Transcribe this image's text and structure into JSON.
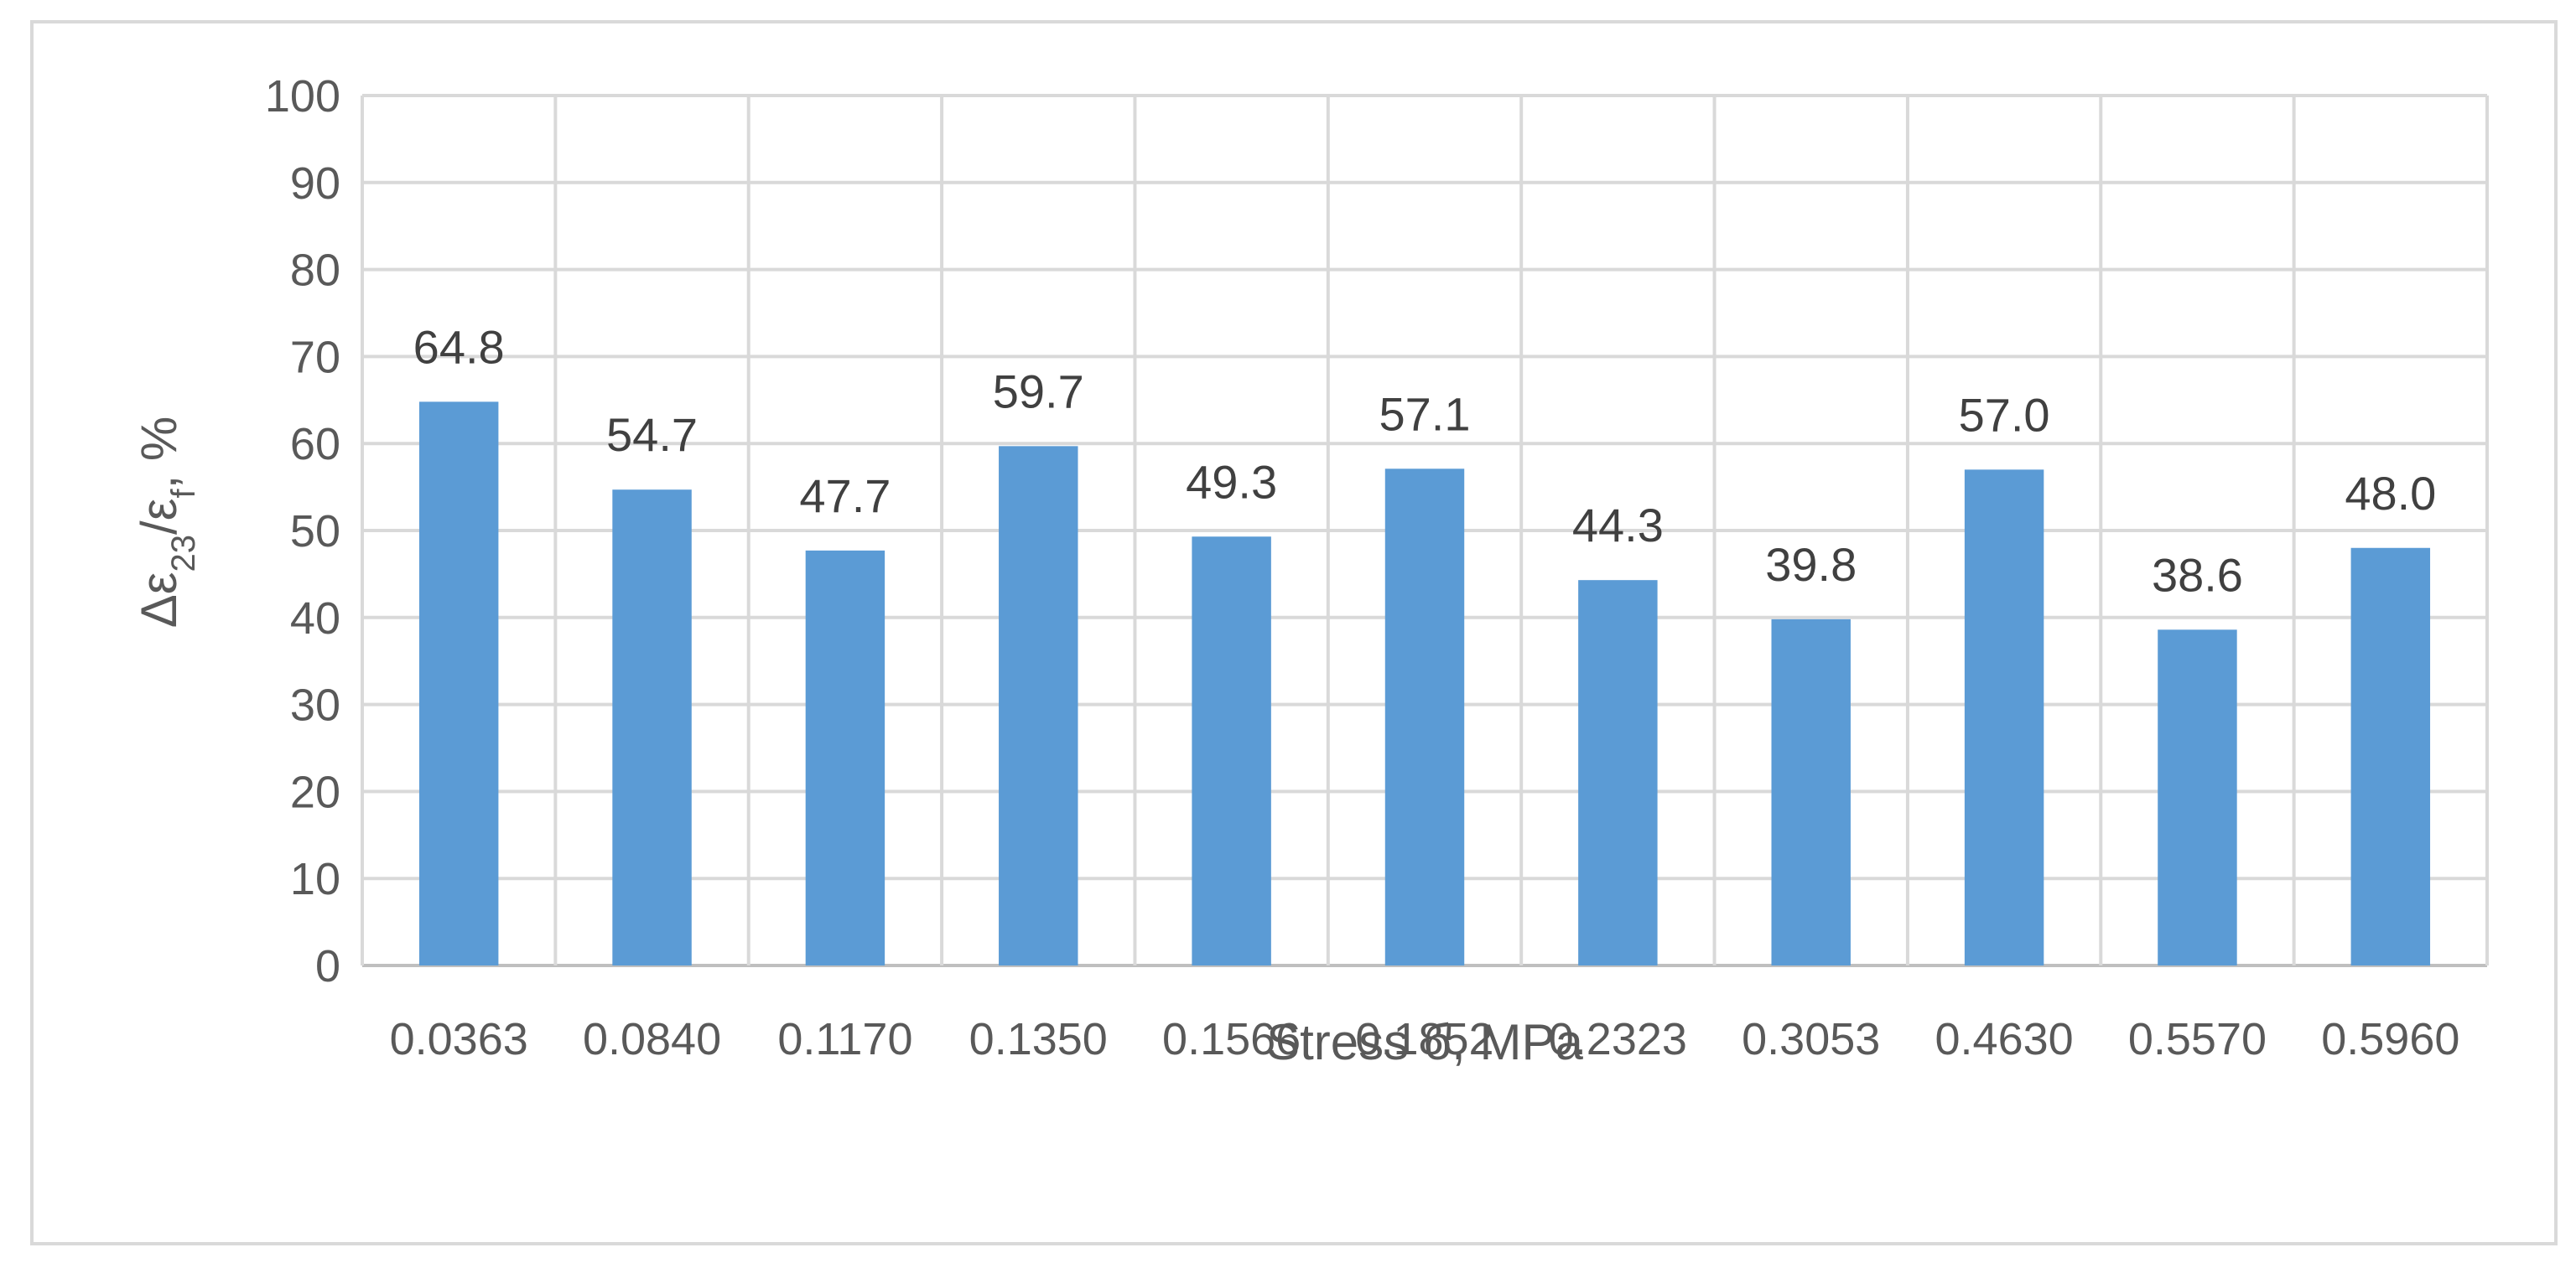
{
  "chart_data": {
    "type": "bar",
    "categories": [
      "0.0363",
      "0.0840",
      "0.1170",
      "0.1350",
      "0.1566",
      "0.1852",
      "0.2323",
      "0.3053",
      "0.4630",
      "0.5570",
      "0.5960"
    ],
    "values": [
      64.8,
      54.7,
      47.7,
      59.7,
      49.3,
      57.1,
      44.3,
      39.8,
      57.0,
      38.6,
      48.0
    ],
    "data_labels": [
      "64.8",
      "54.7",
      "47.7",
      "59.7",
      "49.3",
      "57.1",
      "44.3",
      "39.8",
      "57.0",
      "38.6",
      "48.0"
    ],
    "title": "",
    "xlabel": "Stress б, MPa",
    "ylabel_main": "Δε",
    "ylabel_sub1": "23",
    "ylabel_mid": "/ε",
    "ylabel_sub2": "f",
    "ylabel_tail": ",  %",
    "ylim": [
      0,
      100
    ],
    "yticks": [
      0,
      10,
      20,
      30,
      40,
      50,
      60,
      70,
      80,
      90,
      100
    ],
    "ytick_labels": [
      "0",
      "10",
      "20",
      "30",
      "40",
      "50",
      "60",
      "70",
      "80",
      "90",
      "100"
    ],
    "grid": "both",
    "legend": "none",
    "bar_color": "#5b9bd5"
  }
}
